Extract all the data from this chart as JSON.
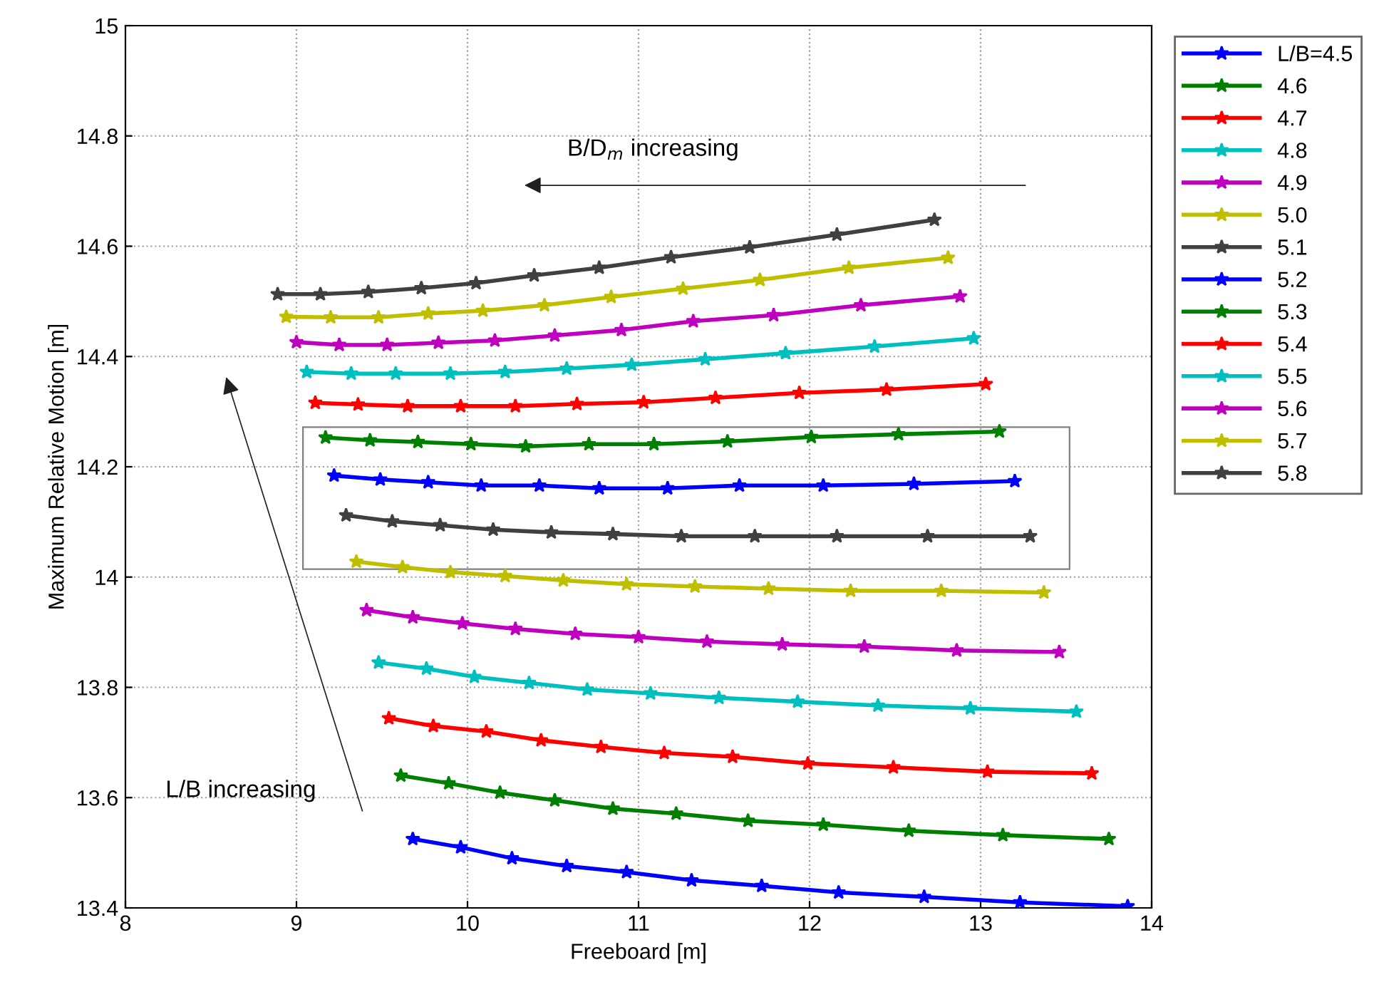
{
  "chart_data": {
    "type": "line",
    "xlabel": "Freeboard [m]",
    "ylabel": "Maximum Relative Motion [m]",
    "xlim": [
      8,
      14
    ],
    "ylim": [
      13.4,
      15
    ],
    "xticks": [
      8,
      9,
      10,
      11,
      12,
      13,
      14
    ],
    "yticks": [
      13.4,
      13.6,
      13.8,
      14,
      14.2,
      14.4,
      14.6,
      14.8,
      15
    ],
    "grid": true,
    "legend": "top right",
    "marker": "star",
    "line_style": "solid",
    "annotations": [
      "B/D$_{m}$ increasing",
      "L/B increasing"
    ],
    "series": [
      {
        "name": "L/B=4.5",
        "color": "#0000ff",
        "x": [
          9.68,
          9.96,
          10.26,
          10.58,
          10.93,
          11.31,
          11.72,
          12.17,
          12.67,
          13.23,
          13.86
        ],
        "values": [
          13.525,
          13.51,
          13.49,
          13.476,
          13.465,
          13.45,
          13.44,
          13.428,
          13.42,
          13.41,
          13.403
        ]
      },
      {
        "name": "4.6",
        "color": "#008000",
        "x": [
          9.61,
          9.89,
          10.19,
          10.51,
          10.85,
          11.22,
          11.64,
          12.08,
          12.58,
          13.13,
          13.75
        ],
        "values": [
          13.64,
          13.626,
          13.609,
          13.595,
          13.58,
          13.571,
          13.558,
          13.551,
          13.54,
          13.532,
          13.525
        ]
      },
      {
        "name": "4.7",
        "color": "#ff0000",
        "x": [
          9.54,
          9.8,
          10.11,
          10.43,
          10.78,
          11.15,
          11.55,
          11.99,
          12.49,
          13.04,
          13.65
        ],
        "values": [
          13.744,
          13.73,
          13.72,
          13.704,
          13.692,
          13.681,
          13.674,
          13.662,
          13.655,
          13.647,
          13.644
        ]
      },
      {
        "name": "4.8",
        "color": "#00bfbf",
        "x": [
          9.48,
          9.76,
          10.04,
          10.36,
          10.7,
          11.07,
          11.47,
          11.93,
          12.4,
          12.94,
          13.56
        ],
        "values": [
          13.845,
          13.834,
          13.819,
          13.808,
          13.796,
          13.789,
          13.781,
          13.774,
          13.767,
          13.762,
          13.756
        ]
      },
      {
        "name": "4.9",
        "color": "#bf00bf",
        "x": [
          9.41,
          9.68,
          9.97,
          10.28,
          10.63,
          11.0,
          11.4,
          11.84,
          12.32,
          12.86,
          13.46
        ],
        "values": [
          13.94,
          13.927,
          13.916,
          13.906,
          13.897,
          13.891,
          13.883,
          13.878,
          13.874,
          13.867,
          13.864
        ]
      },
      {
        "name": "5.0",
        "color": "#bfbf00",
        "x": [
          9.35,
          9.62,
          9.9,
          10.22,
          10.56,
          10.93,
          11.33,
          11.76,
          12.24,
          12.77,
          13.37
        ],
        "values": [
          14.028,
          14.018,
          14.009,
          14.002,
          13.994,
          13.987,
          13.983,
          13.979,
          13.975,
          13.975,
          13.972
        ]
      },
      {
        "name": "5.1",
        "color": "#404040",
        "x": [
          9.29,
          9.56,
          9.84,
          10.15,
          10.49,
          10.85,
          11.25,
          11.68,
          12.16,
          12.69,
          13.29
        ],
        "values": [
          14.112,
          14.101,
          14.094,
          14.086,
          14.081,
          14.078,
          14.074,
          14.074,
          14.074,
          14.074,
          14.074
        ]
      },
      {
        "name": "5.2",
        "color": "#0000ff",
        "x": [
          9.22,
          9.49,
          9.77,
          10.08,
          10.42,
          10.77,
          11.17,
          11.59,
          12.08,
          12.61,
          13.2
        ],
        "values": [
          14.184,
          14.177,
          14.172,
          14.166,
          14.166,
          14.161,
          14.161,
          14.166,
          14.166,
          14.169,
          14.174
        ]
      },
      {
        "name": "5.3",
        "color": "#008000",
        "x": [
          9.17,
          9.43,
          9.71,
          10.02,
          10.34,
          10.71,
          11.09,
          11.52,
          12.01,
          12.52,
          13.11
        ],
        "values": [
          14.253,
          14.248,
          14.245,
          14.241,
          14.237,
          14.241,
          14.241,
          14.246,
          14.254,
          14.259,
          14.264
        ]
      },
      {
        "name": "5.4",
        "color": "#ff0000",
        "x": [
          9.11,
          9.36,
          9.65,
          9.96,
          10.28,
          10.64,
          11.03,
          11.45,
          11.94,
          12.45,
          13.03
        ],
        "values": [
          14.316,
          14.313,
          14.31,
          14.31,
          14.31,
          14.314,
          14.317,
          14.325,
          14.334,
          14.34,
          14.35
        ]
      },
      {
        "name": "5.5",
        "color": "#00bfbf",
        "x": [
          9.06,
          9.32,
          9.58,
          9.9,
          10.22,
          10.58,
          10.96,
          11.39,
          11.86,
          12.38,
          12.96
        ],
        "values": [
          14.372,
          14.369,
          14.369,
          14.369,
          14.372,
          14.378,
          14.385,
          14.395,
          14.406,
          14.418,
          14.433
        ]
      },
      {
        "name": "5.6",
        "color": "#bf00bf",
        "x": [
          9.0,
          9.25,
          9.53,
          9.83,
          10.16,
          10.51,
          10.9,
          11.32,
          11.79,
          12.3,
          12.88
        ],
        "values": [
          14.426,
          14.421,
          14.421,
          14.425,
          14.429,
          14.438,
          14.448,
          14.464,
          14.475,
          14.493,
          14.509
        ]
      },
      {
        "name": "5.7",
        "color": "#bfbf00",
        "x": [
          8.94,
          9.2,
          9.48,
          9.77,
          10.09,
          10.45,
          10.84,
          11.26,
          11.71,
          12.23,
          12.81
        ],
        "values": [
          14.472,
          14.471,
          14.471,
          14.478,
          14.483,
          14.493,
          14.508,
          14.523,
          14.539,
          14.561,
          14.579
        ]
      },
      {
        "name": "5.8",
        "color": "#404040",
        "x": [
          8.89,
          9.14,
          9.42,
          9.73,
          10.05,
          10.39,
          10.77,
          11.19,
          11.65,
          12.16,
          12.73
        ],
        "values": [
          14.513,
          14.513,
          14.517,
          14.524,
          14.533,
          14.547,
          14.561,
          14.58,
          14.598,
          14.621,
          14.648
        ]
      }
    ]
  }
}
